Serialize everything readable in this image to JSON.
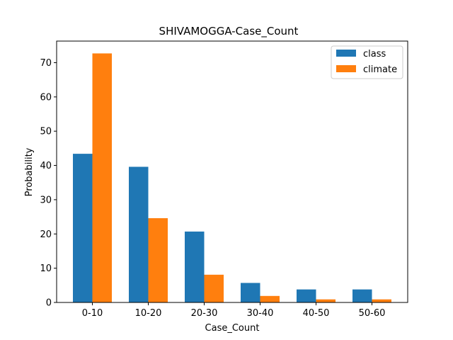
{
  "chart_data": {
    "type": "bar",
    "title": "SHIVAMOGGA-Case_Count",
    "xlabel": "Case_Count",
    "ylabel": "Probability",
    "categories": [
      "0-10",
      "10-20",
      "20-30",
      "30-40",
      "40-50",
      "50-60"
    ],
    "series": [
      {
        "name": "class",
        "color": "#1f77b4",
        "values": [
          43.4,
          39.6,
          20.7,
          5.7,
          3.8,
          3.8
        ]
      },
      {
        "name": "climate",
        "color": "#ff7f0e",
        "values": [
          72.7,
          24.6,
          8.1,
          1.9,
          0.9,
          0.9
        ]
      }
    ],
    "ylim": [
      0,
      76.3
    ],
    "yticks": [
      0,
      10,
      20,
      30,
      40,
      50,
      60,
      70
    ],
    "grid": false,
    "legend_position": "top-right"
  }
}
